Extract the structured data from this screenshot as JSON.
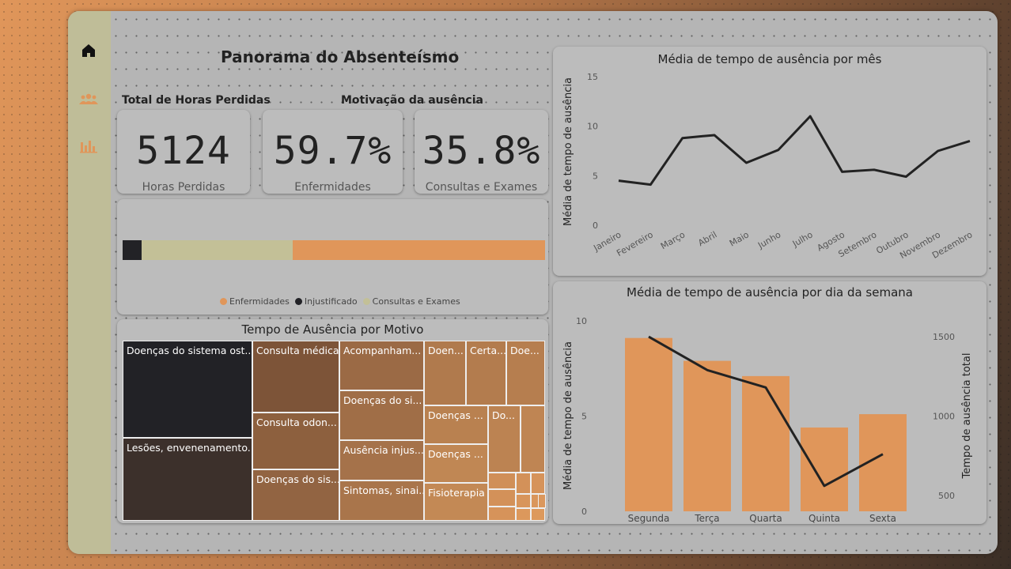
{
  "nav": {
    "home_icon": "home-icon",
    "people_icon": "people-icon",
    "chart_icon": "bar-chart-icon",
    "accent": "#e0965a"
  },
  "title": "Panorama do Absenteísmo",
  "sections": {
    "total_hours": "Total de Horas Perdidas",
    "motivation": "Motivação da ausência"
  },
  "kpis": [
    {
      "value": "5124",
      "label": "Horas Perdidas"
    },
    {
      "value": "59.7%",
      "label": "Enfermidades"
    },
    {
      "value": "35.8%",
      "label": "Consultas e Exames"
    }
  ],
  "stacked_bar": {
    "segments": [
      {
        "name": "Injustificado",
        "percent": 4.5,
        "color": "#222226"
      },
      {
        "name": "Consultas e Exames",
        "percent": 35.8,
        "color": "#c3c097"
      },
      {
        "name": "Enfermidades",
        "percent": 59.7,
        "color": "#e0965a"
      }
    ],
    "legend": [
      {
        "label": "Enfermidades",
        "color": "#e0965a"
      },
      {
        "label": "Injustificado",
        "color": "#222226"
      },
      {
        "label": "Consultas e Exames",
        "color": "#c3c097"
      }
    ]
  },
  "treemap": {
    "title": "Tempo de Ausência por Motivo",
    "cells": [
      "Doenças do sistema ost...",
      "Lesões, envenenamento...",
      "Consulta médica",
      "Consulta odon...",
      "Doenças do sis...",
      "Acompanham...",
      "Doenças do si...",
      "Ausência injus...",
      "Sintomas, sinai...",
      "Doen...",
      "Certa...",
      "Doe...",
      "Doenças ...",
      "Do...",
      "Doenças ...",
      "Fisioterapia"
    ]
  },
  "chart_data": [
    {
      "type": "line",
      "title": "Média de tempo de ausência por mês",
      "xlabel": "",
      "ylabel": "Média de tempo de ausência",
      "categories": [
        "Janeiro",
        "Fevereiro",
        "Março",
        "Abril",
        "Maio",
        "Junho",
        "Julho",
        "Agosto",
        "Setembro",
        "Outubro",
        "Novembro",
        "Dezembro"
      ],
      "values": [
        4.5,
        4.1,
        8.8,
        9.1,
        6.3,
        7.6,
        11.0,
        5.4,
        5.6,
        4.9,
        7.5,
        8.5
      ],
      "yticks": [
        "0",
        "5",
        "10",
        "15"
      ],
      "ylim": [
        0,
        15
      ],
      "line_color": "#222222"
    },
    {
      "type": "bar",
      "title": "Média de tempo de ausência por dia da semana",
      "categories": [
        "Segunda",
        "Terça",
        "Quarta",
        "Quinta",
        "Sexta"
      ],
      "series": [
        {
          "type": "bar",
          "values": [
            9.1,
            7.9,
            7.1,
            4.4,
            5.1
          ],
          "color": "#e0965a"
        },
        {
          "type": "line",
          "values": [
            1500,
            1290,
            1180,
            560,
            760
          ],
          "color": "#222222"
        }
      ],
      "ylabel": "Média de tempo de ausência",
      "y2label": "Tempo de ausência total",
      "yticks": [
        "0",
        "5",
        "10"
      ],
      "y2ticks": [
        "500",
        "1000",
        "1500"
      ],
      "ylim": [
        0,
        10
      ],
      "y2lim": [
        400,
        1600
      ]
    }
  ]
}
